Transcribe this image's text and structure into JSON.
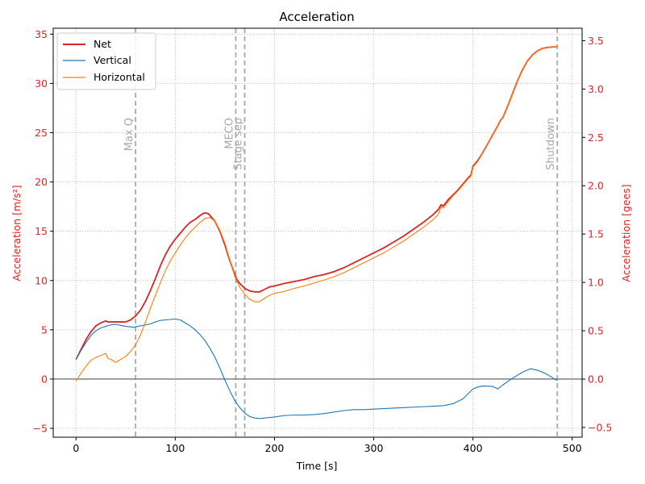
{
  "colors": {
    "net": "#d62728",
    "vertical": "#1f77b4",
    "horizontal": "#ff7f0e",
    "axis_red": "#d62728",
    "event_line": "#a8a8a8",
    "zero_line": "#808080",
    "grid": "#b0b0b0"
  },
  "chart_data": {
    "type": "line",
    "title": "Acceleration",
    "xlabel": "Time [s]",
    "ylabel": "Acceleration [m/s²]",
    "y2label": "Acceleration [gees]",
    "xlim": [
      -23,
      510
    ],
    "ylim": [
      -5.9,
      35.6
    ],
    "y2lim": [
      -0.601,
      3.629
    ],
    "xticks": [
      0,
      100,
      200,
      300,
      400,
      500
    ],
    "yticks": [
      -5,
      0,
      5,
      10,
      15,
      20,
      25,
      30,
      35
    ],
    "y2ticks": [
      -0.5,
      0.0,
      0.5,
      1.0,
      1.5,
      2.0,
      2.5,
      3.0,
      3.5
    ],
    "xtick_labels": [
      "0",
      "100",
      "200",
      "300",
      "400",
      "500"
    ],
    "ytick_labels": [
      "−5",
      "0",
      "5",
      "10",
      "15",
      "20",
      "25",
      "30",
      "35"
    ],
    "y2tick_labels": [
      "−0.5",
      "0.0",
      "0.5",
      "1.0",
      "1.5",
      "2.0",
      "2.5",
      "3.0",
      "3.5"
    ],
    "grid": true,
    "legend_position": "top-left",
    "series": [
      {
        "name": "Net",
        "color_key": "net",
        "x": [
          0,
          5,
          10,
          15,
          20,
          25,
          30,
          32,
          35,
          40,
          45,
          50,
          55,
          60,
          65,
          70,
          75,
          80,
          85,
          90,
          95,
          100,
          105,
          110,
          115,
          120,
          125,
          128,
          130,
          133,
          135,
          140,
          145,
          150,
          155,
          160,
          162,
          165,
          170,
          175,
          180,
          185,
          190,
          195,
          200,
          210,
          220,
          230,
          240,
          250,
          260,
          270,
          280,
          290,
          300,
          310,
          320,
          330,
          340,
          350,
          360,
          365,
          368,
          370,
          375,
          380,
          385,
          390,
          395,
          398,
          400,
          405,
          410,
          415,
          420,
          425,
          428,
          430,
          435,
          440,
          445,
          450,
          455,
          460,
          465,
          470,
          475,
          480,
          485
        ],
        "y": [
          2.0,
          3.0,
          4.0,
          4.8,
          5.4,
          5.7,
          5.9,
          5.8,
          5.8,
          5.8,
          5.8,
          5.8,
          6.0,
          6.4,
          7.0,
          7.9,
          9.0,
          10.2,
          11.5,
          12.6,
          13.5,
          14.2,
          14.8,
          15.4,
          15.9,
          16.2,
          16.6,
          16.8,
          16.85,
          16.8,
          16.6,
          16.0,
          15.0,
          13.6,
          12.0,
          10.6,
          10.1,
          9.7,
          9.2,
          8.95,
          8.85,
          8.85,
          9.1,
          9.35,
          9.45,
          9.7,
          9.9,
          10.1,
          10.4,
          10.6,
          10.9,
          11.3,
          11.8,
          12.3,
          12.8,
          13.3,
          13.9,
          14.5,
          15.2,
          15.9,
          16.7,
          17.2,
          17.7,
          17.55,
          18.2,
          18.7,
          19.2,
          19.8,
          20.4,
          20.7,
          21.6,
          22.2,
          23.0,
          23.9,
          24.8,
          25.7,
          26.3,
          26.5,
          27.7,
          29.0,
          30.3,
          31.4,
          32.3,
          32.9,
          33.3,
          33.55,
          33.65,
          33.7,
          33.75
        ]
      },
      {
        "name": "Vertical",
        "color_key": "vertical",
        "x": [
          0,
          5,
          10,
          15,
          20,
          25,
          30,
          35,
          40,
          45,
          50,
          55,
          58,
          60,
          65,
          70,
          75,
          80,
          85,
          90,
          95,
          100,
          105,
          110,
          115,
          120,
          125,
          130,
          135,
          140,
          145,
          150,
          155,
          160,
          165,
          170,
          175,
          180,
          185,
          190,
          200,
          210,
          220,
          230,
          240,
          250,
          260,
          270,
          280,
          290,
          300,
          310,
          320,
          330,
          340,
          350,
          360,
          370,
          380,
          390,
          395,
          400,
          405,
          410,
          415,
          420,
          425,
          430,
          440,
          450,
          458,
          465,
          470,
          475,
          480,
          485
        ],
        "y": [
          2.0,
          2.9,
          3.7,
          4.4,
          4.9,
          5.2,
          5.35,
          5.5,
          5.55,
          5.45,
          5.35,
          5.3,
          5.25,
          5.3,
          5.4,
          5.5,
          5.6,
          5.8,
          5.95,
          6.0,
          6.05,
          6.1,
          6.0,
          5.7,
          5.4,
          5.0,
          4.5,
          3.9,
          3.1,
          2.2,
          1.1,
          -0.1,
          -1.2,
          -2.2,
          -2.9,
          -3.45,
          -3.8,
          -3.95,
          -4.0,
          -3.95,
          -3.85,
          -3.7,
          -3.65,
          -3.65,
          -3.6,
          -3.5,
          -3.35,
          -3.2,
          -3.1,
          -3.1,
          -3.05,
          -3.0,
          -2.95,
          -2.9,
          -2.85,
          -2.8,
          -2.75,
          -2.7,
          -2.5,
          -2.0,
          -1.5,
          -1.0,
          -0.8,
          -0.7,
          -0.72,
          -0.75,
          -1.0,
          -0.6,
          0.1,
          0.7,
          1.05,
          0.9,
          0.7,
          0.45,
          0.15,
          -0.15
        ]
      },
      {
        "name": "Horizontal",
        "color_key": "horizontal",
        "x": [
          0,
          5,
          10,
          15,
          20,
          25,
          30,
          32,
          35,
          40,
          45,
          50,
          55,
          60,
          65,
          70,
          75,
          80,
          85,
          90,
          95,
          100,
          105,
          110,
          115,
          120,
          125,
          130,
          135,
          140,
          145,
          150,
          155,
          160,
          165,
          170,
          175,
          180,
          185,
          190,
          195,
          200,
          210,
          220,
          230,
          240,
          250,
          260,
          270,
          280,
          290,
          300,
          310,
          320,
          330,
          340,
          350,
          360,
          365,
          368,
          370,
          375,
          380,
          385,
          390,
          395,
          398,
          400,
          405,
          410,
          415,
          420,
          425,
          428,
          430,
          435,
          440,
          445,
          450,
          455,
          460,
          465,
          470,
          475,
          480,
          485
        ],
        "y": [
          -0.2,
          0.6,
          1.3,
          1.9,
          2.2,
          2.4,
          2.6,
          2.1,
          2.0,
          1.7,
          2.0,
          2.3,
          2.8,
          3.5,
          4.5,
          5.8,
          7.2,
          8.5,
          9.8,
          11.0,
          12.0,
          12.8,
          13.6,
          14.3,
          14.9,
          15.4,
          15.9,
          16.3,
          16.4,
          16.0,
          15.1,
          13.8,
          12.1,
          10.4,
          9.3,
          8.6,
          8.1,
          7.85,
          7.85,
          8.2,
          8.5,
          8.7,
          8.9,
          9.2,
          9.45,
          9.75,
          10.05,
          10.4,
          10.8,
          11.3,
          11.8,
          12.3,
          12.8,
          13.4,
          14.0,
          14.7,
          15.4,
          16.2,
          16.7,
          17.5,
          17.35,
          18.0,
          18.6,
          19.1,
          19.7,
          20.3,
          20.6,
          21.5,
          22.1,
          23.0,
          23.9,
          24.8,
          25.7,
          26.3,
          26.5,
          27.7,
          29.0,
          30.3,
          31.4,
          32.3,
          32.9,
          33.3,
          33.55,
          33.65,
          33.7,
          33.75
        ]
      }
    ],
    "events": [
      {
        "label": "Max Q",
        "x": 60
      },
      {
        "label": "MECO",
        "x": 161
      },
      {
        "label": "Stage sep",
        "x": 170
      },
      {
        "label": "Shutdown",
        "x": 485
      }
    ]
  }
}
